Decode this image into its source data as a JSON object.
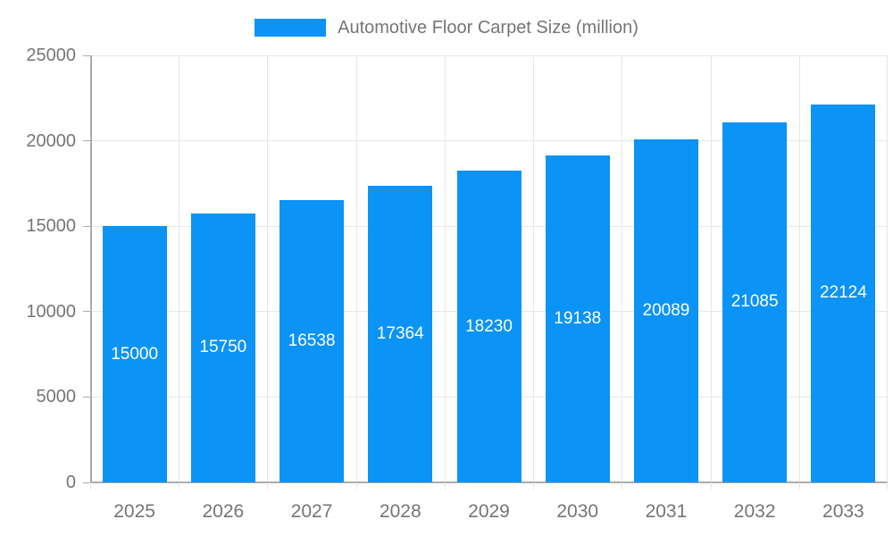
{
  "legend": {
    "position": "top-center",
    "items": [
      {
        "label": "Automotive Floor Carpet Size (million)",
        "swatch_color": "#0b93f6"
      }
    ]
  },
  "chart_data": {
    "type": "bar",
    "title": "Automotive Floor Carpet Size (million)",
    "categories": [
      "2025",
      "2026",
      "2027",
      "2028",
      "2029",
      "2030",
      "2031",
      "2032",
      "2033"
    ],
    "series": [
      {
        "name": "Automotive Floor Carpet Size (million)",
        "values": [
          15000,
          15750,
          16538,
          17364,
          18230,
          19138,
          20089,
          21085,
          22124
        ],
        "color": "#0b93f6"
      }
    ],
    "value_labels": [
      "15000",
      "15750",
      "16538",
      "17364",
      "18230",
      "19138",
      "20089",
      "21085",
      "22124"
    ],
    "value_label_style": {
      "position": "inside-center",
      "color": "#ffffff"
    },
    "xlabel": "",
    "ylabel": "",
    "ylim": [
      0,
      25000
    ],
    "y_ticks": [
      "0",
      "5000",
      "10000",
      "15000",
      "20000",
      "25000"
    ],
    "grid": "on",
    "legend_position": "top"
  },
  "colors": {
    "bar": "#0b93f6",
    "grid_line": "#e6e6e6",
    "axis_line": "#ababab",
    "text_gray": "#757575",
    "bar_label": "#ffffff",
    "background": "#ffffff"
  }
}
